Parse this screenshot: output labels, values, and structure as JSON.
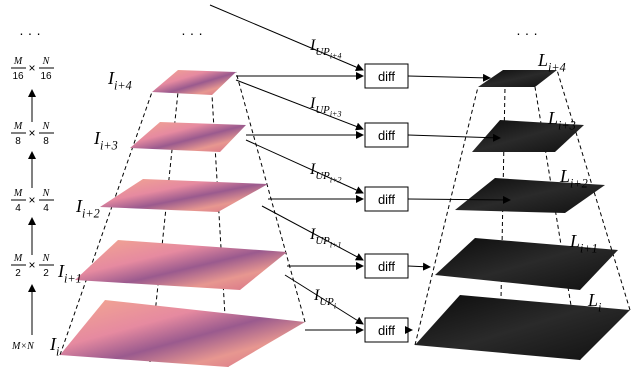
{
  "ellipses": [
    "· · ·",
    "· · ·",
    "· · ·"
  ],
  "sizes": [
    {
      "num1": "M",
      "den1": "16",
      "times": "×",
      "num2": "N",
      "den2": "16"
    },
    {
      "num1": "M",
      "den1": "8",
      "times": "×",
      "num2": "N",
      "den2": "8"
    },
    {
      "num1": "M",
      "den1": "4",
      "times": "×",
      "num2": "N",
      "den2": "4"
    },
    {
      "num1": "M",
      "den1": "2",
      "times": "×",
      "num2": "N",
      "den2": "2"
    }
  ],
  "base_size": "M×N",
  "image_labels": [
    {
      "base": "I",
      "sub": "i+4"
    },
    {
      "base": "I",
      "sub": "i+3"
    },
    {
      "base": "I",
      "sub": "i+2"
    },
    {
      "base": "I",
      "sub": "i+1"
    },
    {
      "base": "I",
      "sub": "i"
    }
  ],
  "up_labels": [
    {
      "base": "I",
      "sub": "UP",
      "subsub": "i+4"
    },
    {
      "base": "I",
      "sub": "UP",
      "subsub": "i+3"
    },
    {
      "base": "I",
      "sub": "UP",
      "subsub": "i+2"
    },
    {
      "base": "I",
      "sub": "UP",
      "subsub": "i+1"
    },
    {
      "base": "I",
      "sub": "UP",
      "subsub": "i"
    }
  ],
  "diff_boxes": [
    "diff",
    "diff",
    "diff",
    "diff",
    "diff"
  ],
  "laplacian_labels": [
    {
      "base": "L",
      "sub": "i+4"
    },
    {
      "base": "L",
      "sub": "i+3"
    },
    {
      "base": "L",
      "sub": "i+2"
    },
    {
      "base": "L",
      "sub": "i+1"
    },
    {
      "base": "L",
      "sub": "i"
    }
  ]
}
